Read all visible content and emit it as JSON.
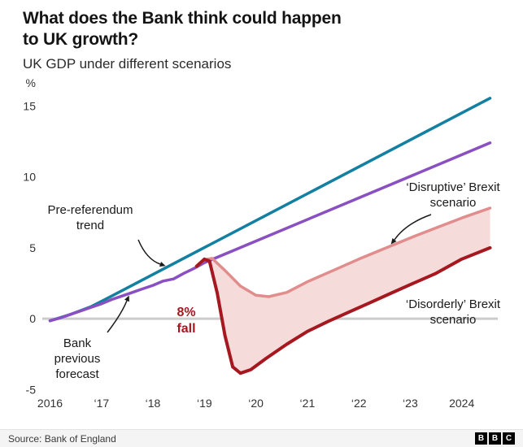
{
  "header": {
    "title_line1": "What does the Bank think could happen",
    "title_line2": "to UK growth?",
    "subtitle": "UK GDP under different scenarios"
  },
  "chart_data": {
    "type": "line",
    "title": "UK GDP under different scenarios",
    "unit": "%",
    "xlim": [
      2015.85,
      2024.7
    ],
    "ylim": [
      -5.5,
      16
    ],
    "x_tick_labels": [
      "2016",
      "‘17",
      "‘18",
      "‘19",
      "‘20",
      "‘21",
      "‘22",
      "‘23",
      "2024"
    ],
    "x_tick_years": [
      2016,
      2017,
      2018,
      2019,
      2020,
      2021,
      2022,
      2023,
      2024
    ],
    "y_ticks": [
      15,
      10,
      5,
      0,
      -5
    ],
    "baseline": 0,
    "baseline_color": "#cccccc",
    "grid": false,
    "legend": "annotated-labels",
    "series": [
      {
        "name": "Pre-referendum trend",
        "color": "#1380A1",
        "width": 3.5,
        "points": [
          [
            2016,
            -0.15
          ],
          [
            2016.4,
            0.3
          ],
          [
            2016.8,
            0.85
          ],
          [
            2017.2,
            1.6
          ],
          [
            2024.55,
            15.55
          ]
        ]
      },
      {
        "name": "Bank previous forecast",
        "color": "#8A4FC0",
        "width": 3.5,
        "points": [
          [
            2016,
            -0.15
          ],
          [
            2016.2,
            0.05
          ],
          [
            2016.4,
            0.3
          ],
          [
            2016.6,
            0.55
          ],
          [
            2016.8,
            0.8
          ],
          [
            2017,
            1.05
          ],
          [
            2017.2,
            1.35
          ],
          [
            2017.4,
            1.6
          ],
          [
            2017.6,
            1.85
          ],
          [
            2017.8,
            2.1
          ],
          [
            2018,
            2.35
          ],
          [
            2018.2,
            2.65
          ],
          [
            2018.4,
            2.8
          ],
          [
            2018.6,
            3.2
          ],
          [
            2018.8,
            3.55
          ],
          [
            2019,
            3.95
          ],
          [
            2024.55,
            12.4
          ]
        ]
      },
      {
        "name": "‘Disruptive’ Brexit scenario",
        "color": "#E18D8D",
        "width": 3.5,
        "points": [
          [
            2018.85,
            3.7
          ],
          [
            2019,
            4.15
          ],
          [
            2019.15,
            4.25
          ],
          [
            2019.4,
            3.4
          ],
          [
            2019.7,
            2.3
          ],
          [
            2020,
            1.65
          ],
          [
            2020.25,
            1.55
          ],
          [
            2020.6,
            1.85
          ],
          [
            2021,
            2.6
          ],
          [
            2021.5,
            3.4
          ],
          [
            2022,
            4.2
          ],
          [
            2022.5,
            4.95
          ],
          [
            2023,
            5.7
          ],
          [
            2023.5,
            6.4
          ],
          [
            2024,
            7.1
          ],
          [
            2024.55,
            7.8
          ]
        ]
      },
      {
        "name": "‘Disorderly’ Brexit scenario",
        "color": "#A6181F",
        "width": 4,
        "points": [
          [
            2018.85,
            3.7
          ],
          [
            2019,
            4.2
          ],
          [
            2019.1,
            4.05
          ],
          [
            2019.25,
            1.8
          ],
          [
            2019.4,
            -1.2
          ],
          [
            2019.55,
            -3.4
          ],
          [
            2019.7,
            -3.85
          ],
          [
            2019.9,
            -3.6
          ],
          [
            2020.2,
            -2.8
          ],
          [
            2020.6,
            -1.8
          ],
          [
            2021,
            -0.9
          ],
          [
            2021.4,
            -0.2
          ],
          [
            2021.8,
            0.45
          ],
          [
            2022.2,
            1.1
          ],
          [
            2022.6,
            1.75
          ],
          [
            2023,
            2.4
          ],
          [
            2023.5,
            3.2
          ],
          [
            2024,
            4.2
          ],
          [
            2024.55,
            5.0
          ]
        ]
      }
    ],
    "band": {
      "between": [
        "‘Disruptive’ Brexit scenario",
        "‘Disorderly’ Brexit scenario"
      ],
      "fill": "#F5DBDA"
    },
    "annotations": {
      "pre_referendum": "Pre-referendum trend",
      "bank_forecast": "Bank previous forecast",
      "fall": "8% fall",
      "fall_color": "#A6181F",
      "disruptive": "‘Disruptive’ Brexit scenario",
      "disorderly": "‘Disorderly’ Brexit scenario"
    }
  },
  "footer": {
    "source": "Source: Bank of England",
    "logo": [
      "B",
      "B",
      "C"
    ]
  }
}
